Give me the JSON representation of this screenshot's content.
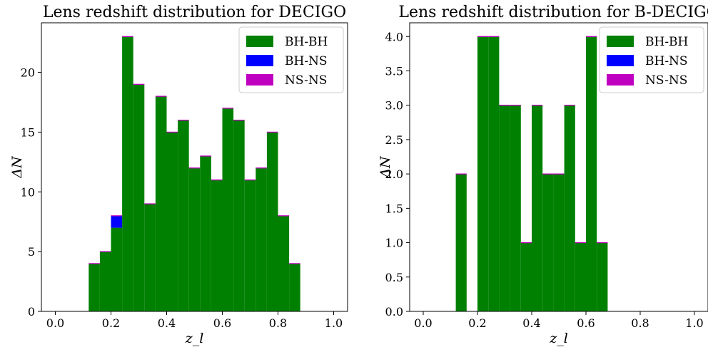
{
  "chart_data": [
    {
      "type": "bar",
      "title": "Lens redshift distribution for DECIGO",
      "xlabel": "z_l",
      "ylabel": "ΔN",
      "xlim": [
        -0.05,
        1.05
      ],
      "ylim": [
        0,
        24.15
      ],
      "xticks": [
        0.0,
        0.2,
        0.4,
        0.6,
        0.8,
        1.0
      ],
      "xtick_labels": [
        "0.0",
        "0.2",
        "0.4",
        "0.6",
        "0.8",
        "1.0"
      ],
      "yticks": [
        0,
        5,
        10,
        15,
        20
      ],
      "ytick_labels": [
        "0",
        "5",
        "10",
        "15",
        "20"
      ],
      "bin_edges": [
        0.12,
        0.16,
        0.2,
        0.24,
        0.28,
        0.32,
        0.36,
        0.4,
        0.44,
        0.48,
        0.52,
        0.56,
        0.6,
        0.64,
        0.68,
        0.72,
        0.76,
        0.8,
        0.84,
        0.88
      ],
      "stacked": true,
      "series": [
        {
          "name": "BH-BH",
          "color": "#008000",
          "values": [
            4,
            5,
            7,
            23,
            19,
            9,
            18,
            15,
            16,
            12,
            13,
            11,
            17,
            16,
            11,
            12,
            15,
            8,
            4
          ]
        },
        {
          "name": "BH-NS",
          "color": "#0000ff",
          "values": [
            0,
            0,
            1,
            0,
            0,
            0,
            0,
            0,
            0,
            0,
            0,
            0,
            0,
            0,
            0,
            0,
            0,
            0,
            0
          ]
        },
        {
          "name": "NS-NS",
          "color": "#c000c0",
          "values": [
            0,
            0,
            0,
            0,
            0,
            0,
            0,
            0,
            0,
            0,
            0,
            0,
            0,
            0,
            0,
            0,
            0,
            0,
            0
          ]
        }
      ],
      "legend": "top-right",
      "grid": false
    },
    {
      "type": "bar",
      "title": "Lens redshift distribution for B-DECIGO",
      "xlabel": "z_l",
      "ylabel": "ΔN",
      "xlim": [
        -0.05,
        1.05
      ],
      "ylim": [
        0,
        4.2
      ],
      "xticks": [
        0.0,
        0.2,
        0.4,
        0.6,
        0.8,
        1.0
      ],
      "xtick_labels": [
        "0.0",
        "0.2",
        "0.4",
        "0.6",
        "0.8",
        "1.0"
      ],
      "yticks": [
        0.0,
        0.5,
        1.0,
        1.5,
        2.0,
        2.5,
        3.0,
        3.5,
        4.0
      ],
      "ytick_labels": [
        "0.0",
        "0.5",
        "1.0",
        "1.5",
        "2.0",
        "2.5",
        "3.0",
        "3.5",
        "4.0"
      ],
      "bin_edges": [
        0.12,
        0.16,
        0.2,
        0.24,
        0.28,
        0.32,
        0.36,
        0.4,
        0.44,
        0.48,
        0.52,
        0.56,
        0.6,
        0.64,
        0.68
      ],
      "stacked": true,
      "series": [
        {
          "name": "BH-BH",
          "color": "#008000",
          "values": [
            2,
            0,
            4,
            4,
            3,
            3,
            1,
            3,
            2,
            2,
            3,
            1,
            4,
            1
          ]
        },
        {
          "name": "BH-NS",
          "color": "#0000ff",
          "values": [
            0,
            0,
            0,
            0,
            0,
            0,
            0,
            0,
            0,
            0,
            0,
            0,
            0,
            0
          ]
        },
        {
          "name": "NS-NS",
          "color": "#c000c0",
          "values": [
            0,
            0,
            0,
            0,
            0,
            0,
            0,
            0,
            0,
            0,
            0,
            0,
            0,
            0
          ]
        }
      ],
      "legend": "top-right",
      "grid": false
    }
  ]
}
